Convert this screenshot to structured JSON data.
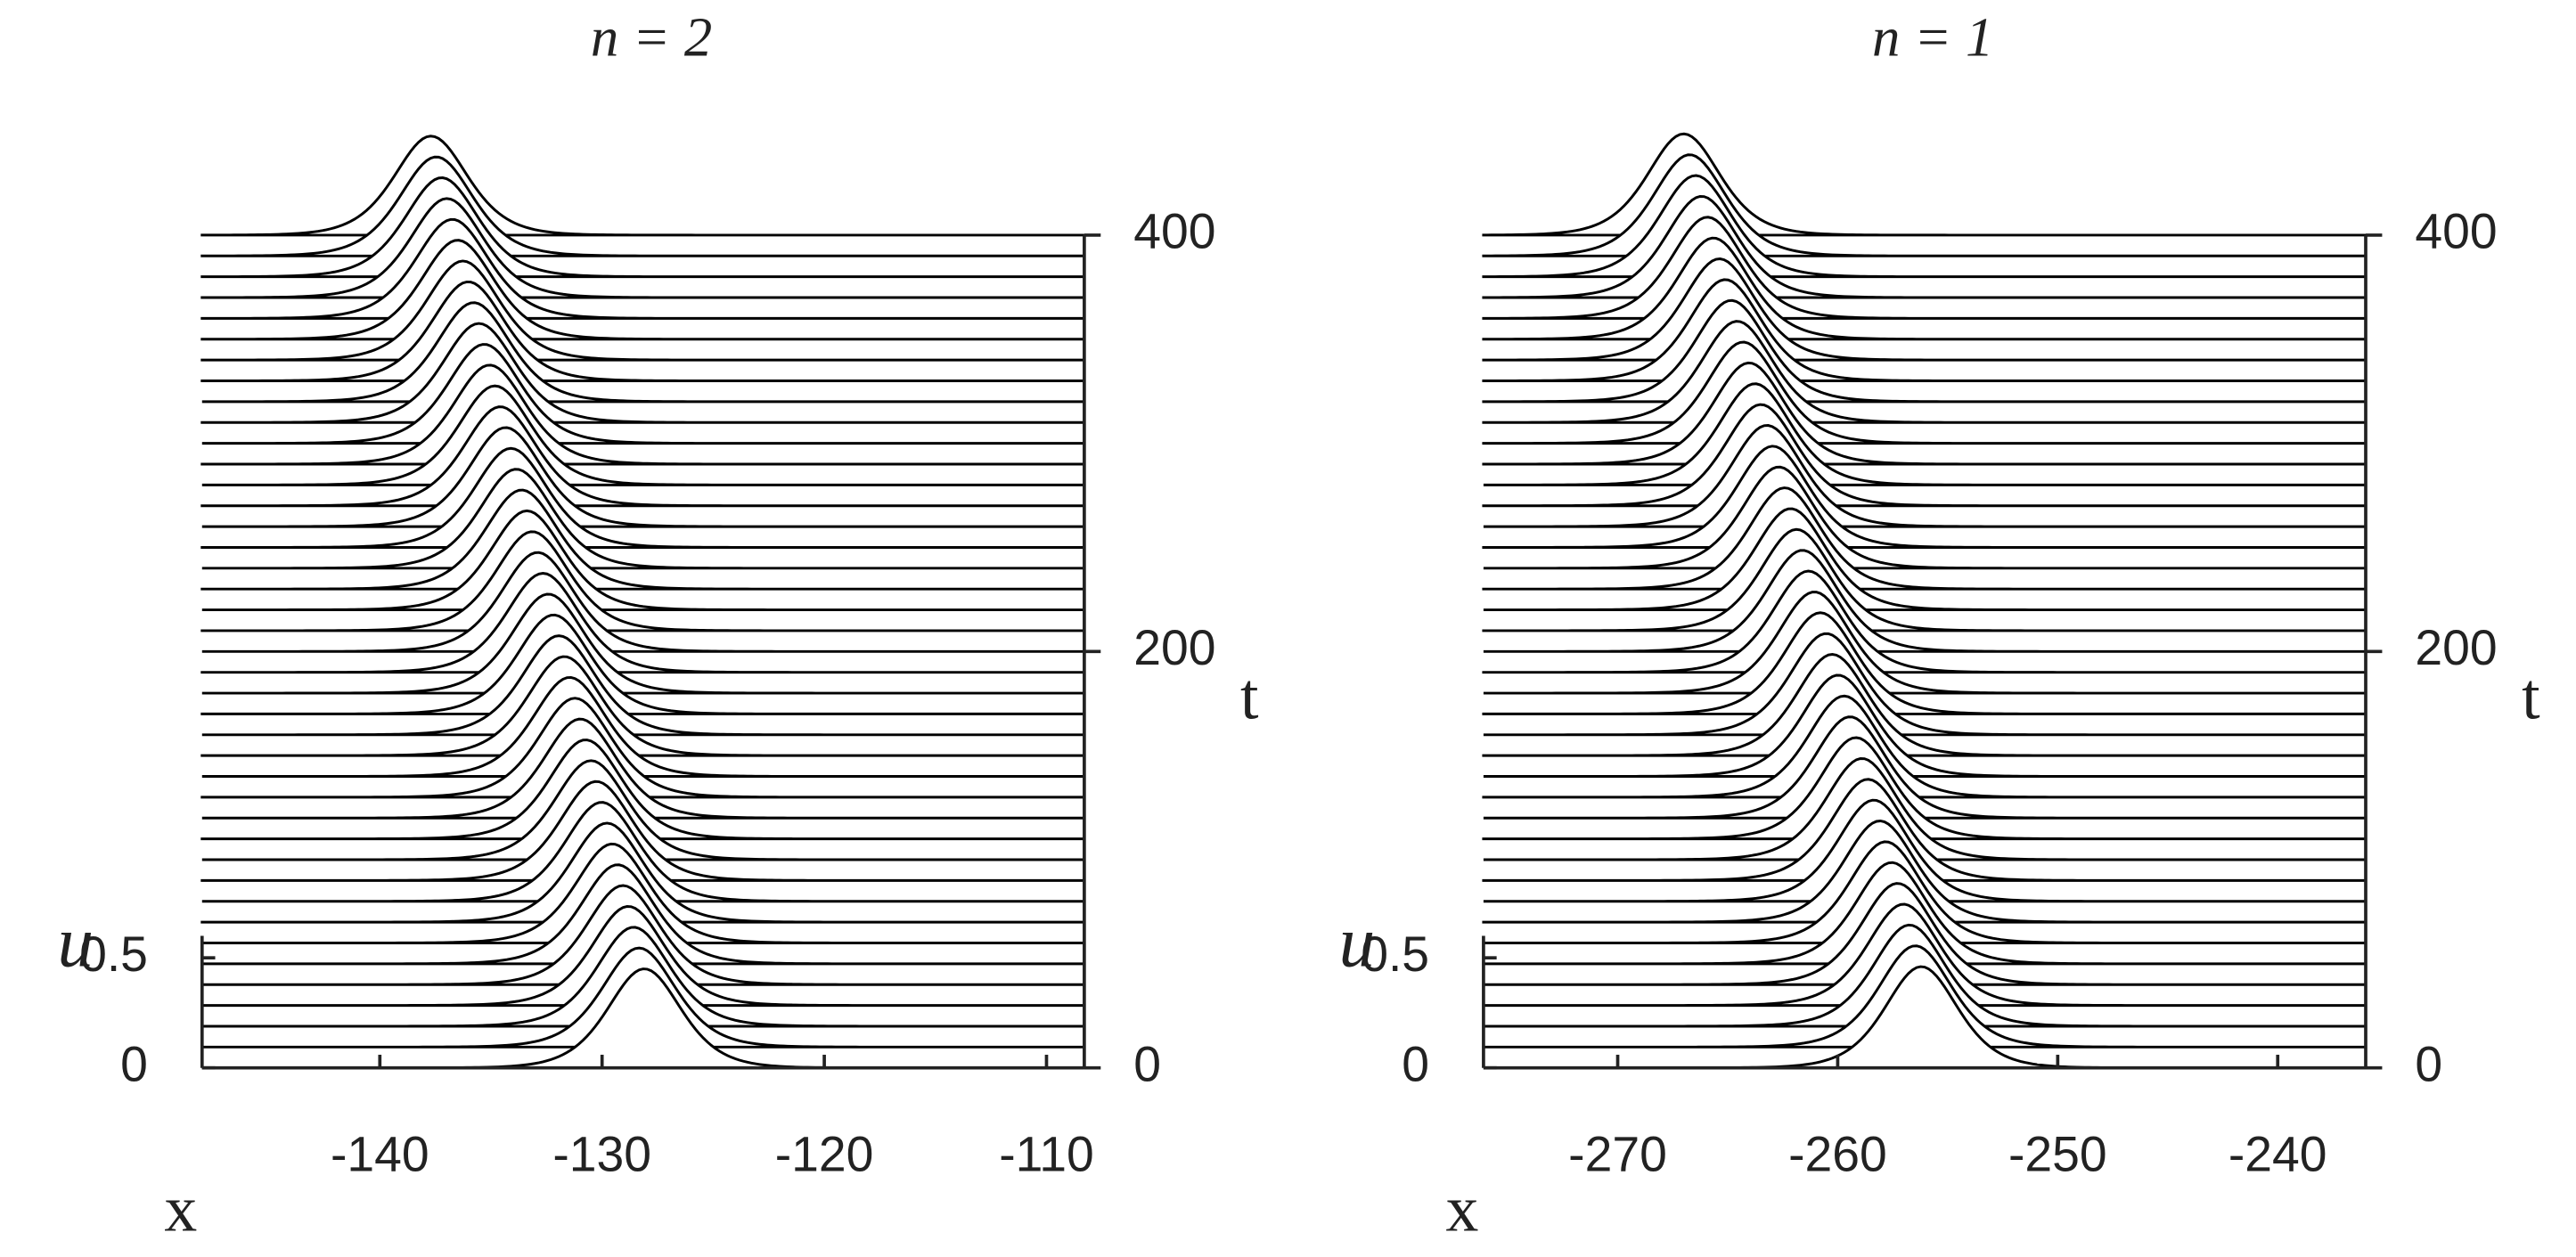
{
  "chart_data": [
    {
      "type": "waterfall",
      "title": "n = 2",
      "xlabel": "x",
      "ylabel": "u",
      "y2label": "t",
      "xlim": [
        -148,
        -108.3
      ],
      "xticks": [
        -140,
        -130,
        -120,
        -110
      ],
      "ylim": [
        0,
        0.6
      ],
      "yticks": [
        0,
        0.5
      ],
      "y2lim": [
        0,
        400
      ],
      "y2ticks": [
        0,
        200,
        400
      ],
      "amplitude": 0.45,
      "width": 2.2,
      "color": "#000000",
      "t": [
        0,
        10,
        20,
        30,
        40,
        50,
        60,
        70,
        80,
        90,
        100,
        110,
        120,
        130,
        140,
        150,
        160,
        170,
        180,
        190,
        200,
        210,
        220,
        230,
        240,
        250,
        260,
        270,
        280,
        290,
        300,
        310,
        320,
        330,
        340,
        350,
        360,
        370,
        380,
        390,
        400
      ],
      "centers": [
        -128.1,
        -128.34,
        -128.58,
        -128.82,
        -129.06,
        -129.3,
        -129.54,
        -129.78,
        -130.02,
        -130.26,
        -130.5,
        -130.74,
        -130.98,
        -131.22,
        -131.46,
        -131.7,
        -131.94,
        -132.18,
        -132.42,
        -132.66,
        -132.9,
        -133.14,
        -133.38,
        -133.62,
        -133.86,
        -134.1,
        -134.34,
        -134.58,
        -134.82,
        -135.06,
        -135.3,
        -135.54,
        -135.78,
        -136.02,
        -136.26,
        -136.5,
        -136.74,
        -136.98,
        -137.22,
        -137.46,
        -137.7
      ]
    },
    {
      "type": "waterfall",
      "title": "n = 1",
      "xlabel": "x",
      "ylabel": "u",
      "y2label": "t",
      "xlim": [
        -276.1,
        -236.0
      ],
      "xticks": [
        -270,
        -260,
        -250,
        -240
      ],
      "ylim": [
        0,
        0.6
      ],
      "yticks": [
        0,
        0.5
      ],
      "y2lim": [
        0,
        400
      ],
      "y2ticks": [
        0,
        200,
        400
      ],
      "amplitude": 0.46,
      "width": 2.2,
      "color": "#000000",
      "t": [
        0,
        10,
        20,
        30,
        40,
        50,
        60,
        70,
        80,
        90,
        100,
        110,
        120,
        130,
        140,
        150,
        160,
        170,
        180,
        190,
        200,
        210,
        220,
        230,
        240,
        250,
        260,
        270,
        280,
        290,
        300,
        310,
        320,
        330,
        340,
        350,
        360,
        370,
        380,
        390,
        400
      ],
      "centers": [
        -256.2,
        -256.47,
        -256.74,
        -257.01,
        -257.28,
        -257.55,
        -257.82,
        -258.09,
        -258.36,
        -258.63,
        -258.9,
        -259.17,
        -259.44,
        -259.71,
        -259.98,
        -260.25,
        -260.52,
        -260.79,
        -261.06,
        -261.33,
        -261.6,
        -261.87,
        -262.14,
        -262.41,
        -262.68,
        -262.95,
        -263.22,
        -263.49,
        -263.76,
        -264.03,
        -264.3,
        -264.57,
        -264.84,
        -265.11,
        -265.38,
        -265.65,
        -265.92,
        -266.19,
        -266.46,
        -266.73,
        -267.0
      ]
    }
  ]
}
